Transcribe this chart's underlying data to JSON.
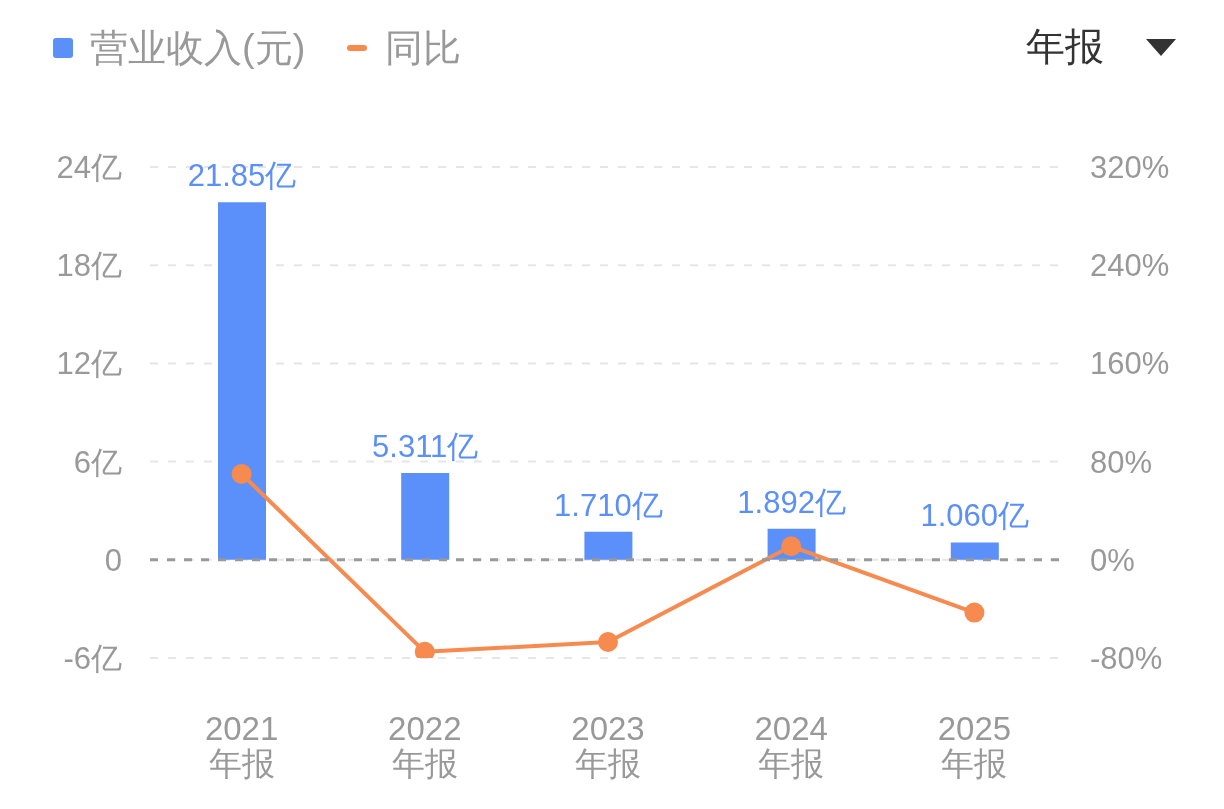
{
  "chart_data": {
    "type": "bar",
    "categories": [
      "2021\n年报",
      "2022\n年报",
      "2023\n年报",
      "2024\n年报",
      "2025\n年报"
    ],
    "series": [
      {
        "name": "营业收入(元)",
        "color": "#5b8ff9",
        "values": [
          21.85,
          5.311,
          1.71,
          1.892,
          1.06
        ],
        "value_labels": [
          "21.85亿",
          "5.311亿",
          "1.710亿",
          "1.892亿",
          "1.060亿"
        ]
      },
      {
        "name": "同比",
        "type": "line",
        "axis": "y2",
        "color": "#f78a4f",
        "values": [
          70,
          -75,
          -67,
          11,
          -43
        ]
      }
    ],
    "ylim": [
      -6,
      24
    ],
    "yticks": [
      {
        "value": -6,
        "label": "-6亿"
      },
      0,
      {
        "value": 6,
        "label": "6亿"
      },
      {
        "value": 12,
        "label": "12亿"
      },
      {
        "value": 18,
        "label": "18亿"
      },
      {
        "value": 24,
        "label": "24亿"
      }
    ],
    "y2lim": [
      -80,
      320
    ],
    "y2ticks": [
      {
        "value": -80,
        "label": "-80%"
      },
      {
        "value": 0,
        "label": "0%"
      },
      {
        "value": 80,
        "label": "80%"
      },
      {
        "value": 160,
        "label": "160%"
      },
      {
        "value": 240,
        "label": "240%"
      },
      {
        "value": 320,
        "label": "320%"
      }
    ],
    "grid": "y",
    "legend": "top left",
    "marker": "circle",
    "ref_lines": [
      {
        "axis": "y",
        "value": 0,
        "color": "#999999",
        "line_style": "dashed"
      }
    ],
    "annotations": [
      "年报"
    ]
  }
}
